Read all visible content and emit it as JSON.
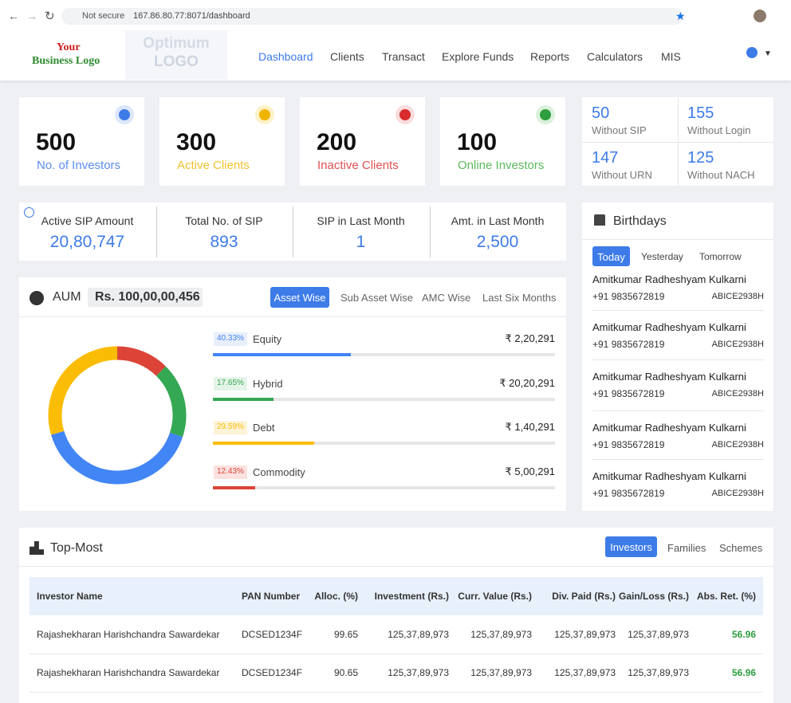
{
  "browser": {
    "security": "Not secure",
    "url": "167.86.80.77:8071/dashboard"
  },
  "header": {
    "logo_line1": "Your",
    "logo_line2": "Business Logo",
    "logo_box_line1": "Optimum",
    "logo_box_line2": "LOGO",
    "nav": [
      "Dashboard",
      "Clients",
      "Transact",
      "Explore Funds",
      "Reports",
      "Calculators",
      "MIS"
    ]
  },
  "stats": [
    {
      "value": "500",
      "label": "No. of Investors"
    },
    {
      "value": "300",
      "label": "Active Clients"
    },
    {
      "value": "200",
      "label": "Inactive Clients"
    },
    {
      "value": "100",
      "label": "Online Investors"
    }
  ],
  "mini_stats": [
    {
      "value": "50",
      "label": "Without SIP"
    },
    {
      "value": "155",
      "label": "Without Login"
    },
    {
      "value": "147",
      "label": "Without URN"
    },
    {
      "value": "125",
      "label": "Without NACH"
    }
  ],
  "sip": [
    {
      "label": "Active SIP Amount",
      "value": "20,80,747"
    },
    {
      "label": "Total No. of SIP",
      "value": "893"
    },
    {
      "label": "SIP in Last Month",
      "value": "1"
    },
    {
      "label": "Amt. in Last Month",
      "value": "2,500"
    }
  ],
  "aum": {
    "title": "AUM",
    "amount": "Rs. 100,00,00,456",
    "tabs": [
      "Asset Wise",
      "Sub Asset Wise",
      "AMC Wise",
      "Last Six Months"
    ]
  },
  "chart_data": {
    "type": "pie",
    "categories": [
      "Equity",
      "Hybrid",
      "Debt",
      "Commodity"
    ],
    "values": [
      40.33,
      17.65,
      29.59,
      12.43
    ],
    "value_labels": [
      "40.33%",
      "17.65%",
      "29.59%",
      "12.43%"
    ],
    "amounts": [
      "₹ 2,20,291",
      "₹ 20,20,291",
      "₹ 1,40,291",
      "₹ 5,00,291"
    ],
    "colors": [
      "#4285f4",
      "#34a853",
      "#fbbc05",
      "#db4437"
    ]
  },
  "birthdays": {
    "title": "Birthdays",
    "tabs": [
      "Today",
      "Yesterday",
      "Tomorrow"
    ],
    "entries": [
      {
        "name": "Amitkumar Radheshyam Kulkarni",
        "phone": "+91 9835672819",
        "code": "ABICE2938H"
      },
      {
        "name": "Amitkumar Radheshyam Kulkarni",
        "phone": "+91 9835672819",
        "code": "ABICE2938H"
      },
      {
        "name": "Amitkumar Radheshyam Kulkarni",
        "phone": "+91 9835672819",
        "code": "ABICE2938H"
      },
      {
        "name": "Amitkumar Radheshyam Kulkarni",
        "phone": "+91 9835672819",
        "code": "ABICE2938H"
      },
      {
        "name": "Amitkumar Radheshyam Kulkarni",
        "phone": "+91 9835672819",
        "code": "ABICE2938H"
      }
    ]
  },
  "top_most": {
    "title": "Top-Most",
    "tabs": [
      "Investors",
      "Families",
      "Schemes"
    ],
    "table": {
      "headers": [
        "Investor Name",
        "PAN Number",
        "Alloc. (%)",
        "Investment (Rs.)",
        "Curr. Value (Rs.)",
        "Div. Paid (Rs.)",
        "Gain/Loss (Rs.)",
        "Abs. Ret. (%)"
      ],
      "rows": [
        [
          "Rajashekharan Harishchandra Sawardekar",
          "DCSED1234F",
          "99.65",
          "125,37,89,973",
          "125,37,89,973",
          "125,37,89,973",
          "125,37,89,973",
          "56.96"
        ],
        [
          "Rajashekharan Harishchandra Sawardekar",
          "DCSED1234F",
          "90.65",
          "125,37,89,973",
          "125,37,89,973",
          "125,37,89,973",
          "125,37,89,973",
          "56.96"
        ]
      ]
    }
  }
}
